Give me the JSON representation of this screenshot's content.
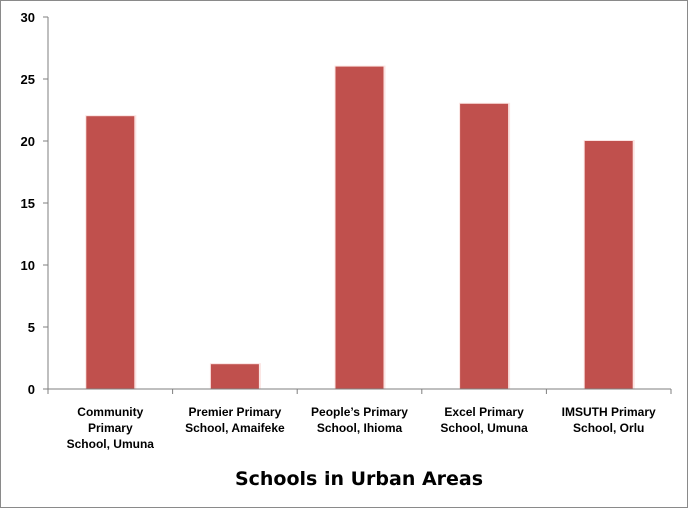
{
  "chart_data": {
    "type": "bar",
    "categories": [
      [
        "Community",
        "Primary",
        "School, Umuna"
      ],
      [
        "Premier Primary",
        "School, Amaifeke"
      ],
      [
        "People’s Primary",
        "School, Ihioma"
      ],
      [
        "Excel Primary",
        "School, Umuna"
      ],
      [
        "IMSUTH Primary",
        "School, Orlu"
      ]
    ],
    "values": [
      22,
      2,
      26,
      23,
      20
    ],
    "title": "",
    "xlabel": "Schools in Urban Areas",
    "ylabel": "",
    "ylim": [
      0,
      30
    ],
    "yticks": [
      0,
      5,
      10,
      15,
      20,
      25,
      30
    ],
    "grid": false,
    "legend": "none",
    "colors": {
      "bar": "#c0504d",
      "bar_highlight": "#fbe3e1",
      "axis": "#7f7f7f"
    }
  }
}
